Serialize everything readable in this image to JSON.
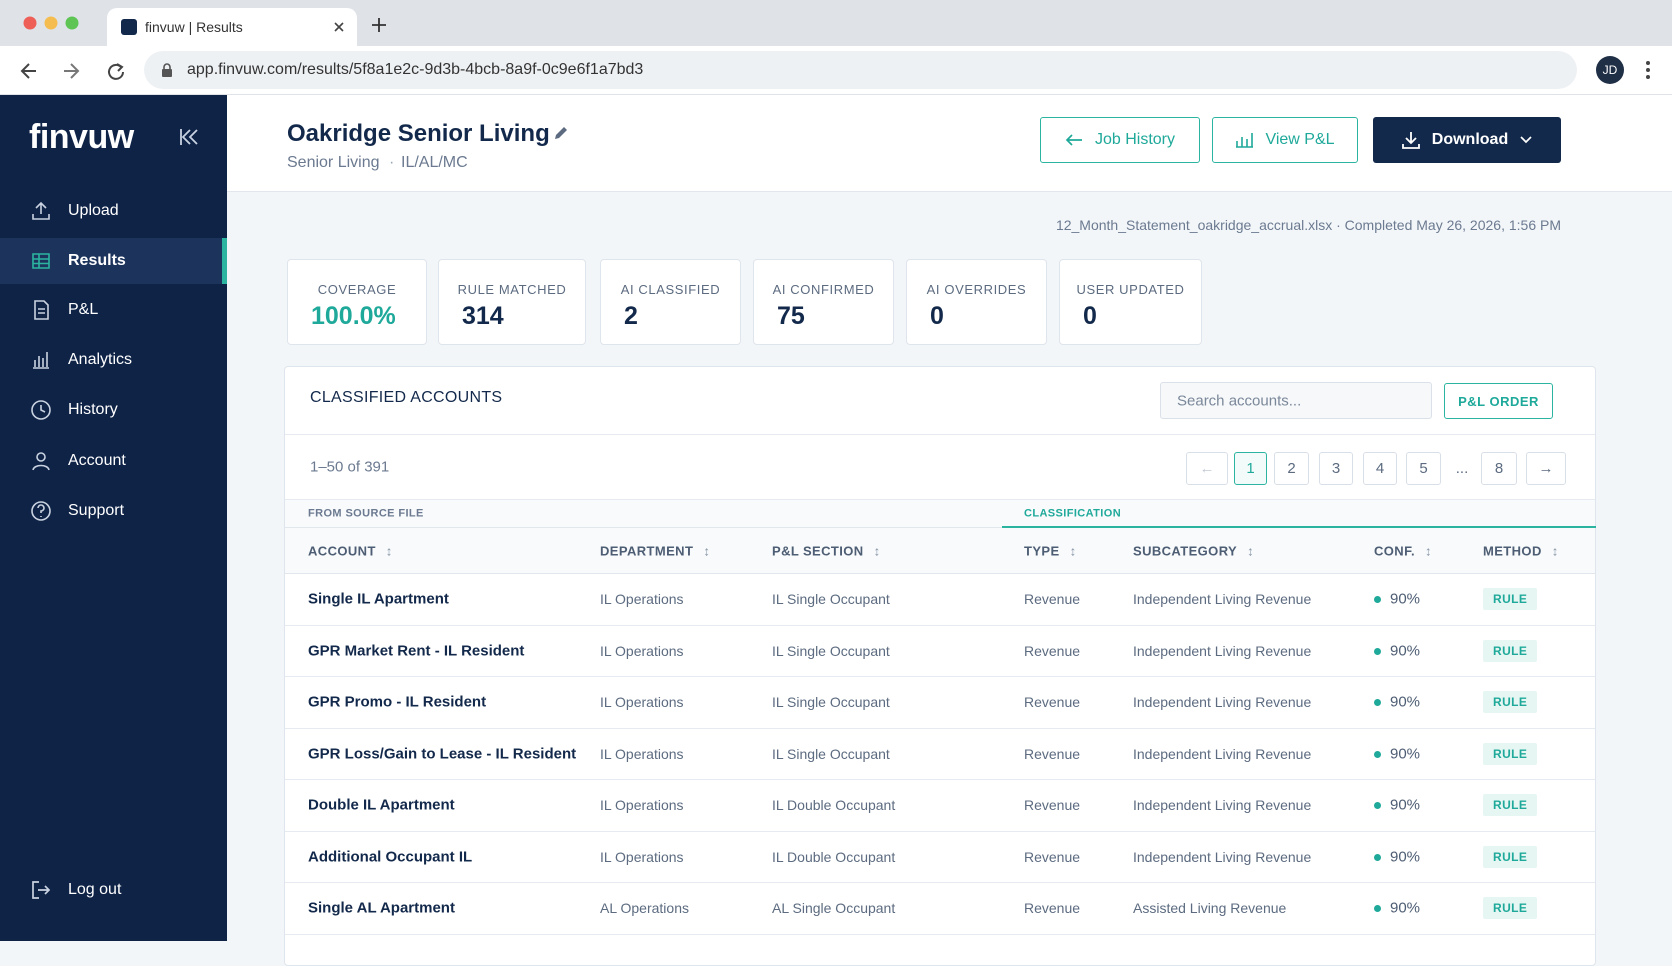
{
  "browser": {
    "tab_title": "finvuw | Results",
    "url": "app.finvuw.com/results/5f8a1e2c-9d3b-4bcb-8a9f-0c9e6f1a7bd3",
    "avatar": "JD"
  },
  "sidebar": {
    "logo": "finvuw",
    "nav": [
      "Upload",
      "Results",
      "P&L",
      "Analytics",
      "History",
      "Account",
      "Support"
    ],
    "logout": "Log out"
  },
  "header": {
    "title": "Oakridge Senior Living",
    "subtitle": [
      "Senior Living",
      "IL/AL/MC"
    ],
    "buttons": [
      "Job History",
      "View P&L",
      "Download"
    ]
  },
  "file_info": "12_Month_Statement_oakridge_accrual.xlsx · Completed May 26, 2026, 1:56 PM",
  "stats": [
    {
      "label": "COVERAGE",
      "value": "100.0%"
    },
    {
      "label": "RULE MATCHED",
      "value": "314"
    },
    {
      "label": "AI CLASSIFIED",
      "value": "2"
    },
    {
      "label": "AI CONFIRMED",
      "value": "75"
    },
    {
      "label": "AI OVERRIDES",
      "value": "0"
    },
    {
      "label": "USER UPDATED",
      "value": "0"
    }
  ],
  "table": {
    "title": "CLASSIFIED ACCOUNTS",
    "search_placeholder": "Search accounts...",
    "order_button": "P&L ORDER",
    "range": "1–50 of 391",
    "pages": [
      "←",
      "1",
      "2",
      "3",
      "4",
      "5",
      "...",
      "8",
      "→"
    ],
    "groups": [
      "FROM SOURCE FILE",
      "CLASSIFICATION"
    ],
    "columns": [
      "ACCOUNT",
      "DEPARTMENT",
      "P&L SECTION",
      "TYPE",
      "SUBCATEGORY",
      "CONF.",
      "METHOD"
    ],
    "rows": [
      [
        "Single IL Apartment",
        "IL Operations",
        "IL Single Occupant",
        "Revenue",
        "Independent Living Revenue",
        "90%",
        "RULE"
      ],
      [
        "GPR Market Rent - IL Resident",
        "IL Operations",
        "IL Single Occupant",
        "Revenue",
        "Independent Living Revenue",
        "90%",
        "RULE"
      ],
      [
        "GPR Promo - IL Resident",
        "IL Operations",
        "IL Single Occupant",
        "Revenue",
        "Independent Living Revenue",
        "90%",
        "RULE"
      ],
      [
        "GPR Loss/Gain to Lease - IL Resident",
        "IL Operations",
        "IL Single Occupant",
        "Revenue",
        "Independent Living Revenue",
        "90%",
        "RULE"
      ],
      [
        "Double IL Apartment",
        "IL Operations",
        "IL Double Occupant",
        "Revenue",
        "Independent Living Revenue",
        "90%",
        "RULE"
      ],
      [
        "Additional Occupant IL",
        "IL Operations",
        "IL Double Occupant",
        "Revenue",
        "Independent Living Revenue",
        "90%",
        "RULE"
      ],
      [
        "Single AL Apartment",
        "AL Operations",
        "AL Single Occupant",
        "Revenue",
        "Assisted Living Revenue",
        "90%",
        "RULE"
      ]
    ]
  }
}
